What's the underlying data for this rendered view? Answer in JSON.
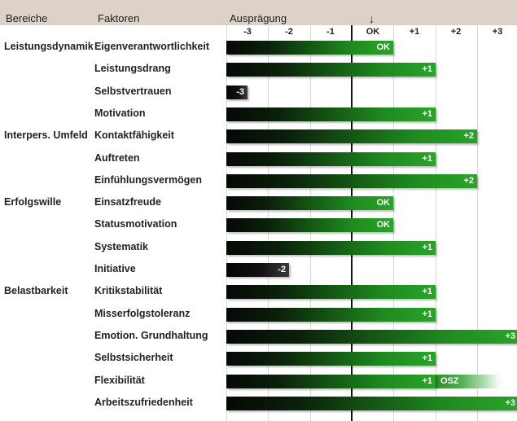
{
  "header": {
    "bereiche": "Bereiche",
    "faktoren": "Faktoren",
    "auspraegung": "Ausprägung",
    "arrow": "↓"
  },
  "chart_data": {
    "type": "bar",
    "orientation": "horizontal",
    "scale_ticks": [
      "-3",
      "-2",
      "-1",
      "OK",
      "+1",
      "+2",
      "+3"
    ],
    "scale_values": [
      -3,
      -2,
      -1,
      0,
      1,
      2,
      3
    ],
    "xlim": [
      -3,
      3
    ],
    "grid": true,
    "colors": {
      "positive": "#29a429",
      "negative": "#111111",
      "header": "#ddd2c8"
    },
    "groups": [
      "Leistungsdynamik",
      "Interpers. Umfeld",
      "Erfolgswille",
      "Belastbarkeit"
    ],
    "rows": [
      {
        "group": "Leistungsdynamik",
        "factor": "Eigenverantwortlichkeit",
        "value": 0,
        "label": "OK"
      },
      {
        "group": "",
        "factor": "Leistungsdrang",
        "value": 1,
        "label": "+1"
      },
      {
        "group": "",
        "factor": "Selbstvertrauen",
        "value": -3,
        "label": "-3"
      },
      {
        "group": "",
        "factor": "Motivation",
        "value": 1,
        "label": "+1"
      },
      {
        "group": "Interpers. Umfeld",
        "factor": "Kontaktfähigkeit",
        "value": 2,
        "label": "+2"
      },
      {
        "group": "",
        "factor": "Auftreten",
        "value": 1,
        "label": "+1"
      },
      {
        "group": "",
        "factor": "Einfühlungsvermögen",
        "value": 2,
        "label": "+2"
      },
      {
        "group": "Erfolgswille",
        "factor": "Einsatzfreude",
        "value": 0,
        "label": "OK"
      },
      {
        "group": "",
        "factor": "Statusmotivation",
        "value": 0,
        "label": "OK"
      },
      {
        "group": "",
        "factor": "Systematik",
        "value": 1,
        "label": "+1"
      },
      {
        "group": "",
        "factor": "Initiative",
        "value": -2,
        "label": "-2"
      },
      {
        "group": "Belastbarkeit",
        "factor": "Kritikstabilität",
        "value": 1,
        "label": "+1"
      },
      {
        "group": "",
        "factor": "Misserfolgstoleranz",
        "value": 1,
        "label": "+1"
      },
      {
        "group": "",
        "factor": "Emotion. Grundhaltung",
        "value": 3,
        "label": "+3"
      },
      {
        "group": "",
        "factor": "Selbstsicherheit",
        "value": 1,
        "label": "+1"
      },
      {
        "group": "",
        "factor": "Flexibilität",
        "value": 1,
        "label": "+1",
        "extension": {
          "label": "OSZ",
          "to_value": 3
        }
      },
      {
        "group": "",
        "factor": "Arbeitszufriedenheit",
        "value": 3,
        "label": "+3"
      }
    ]
  }
}
